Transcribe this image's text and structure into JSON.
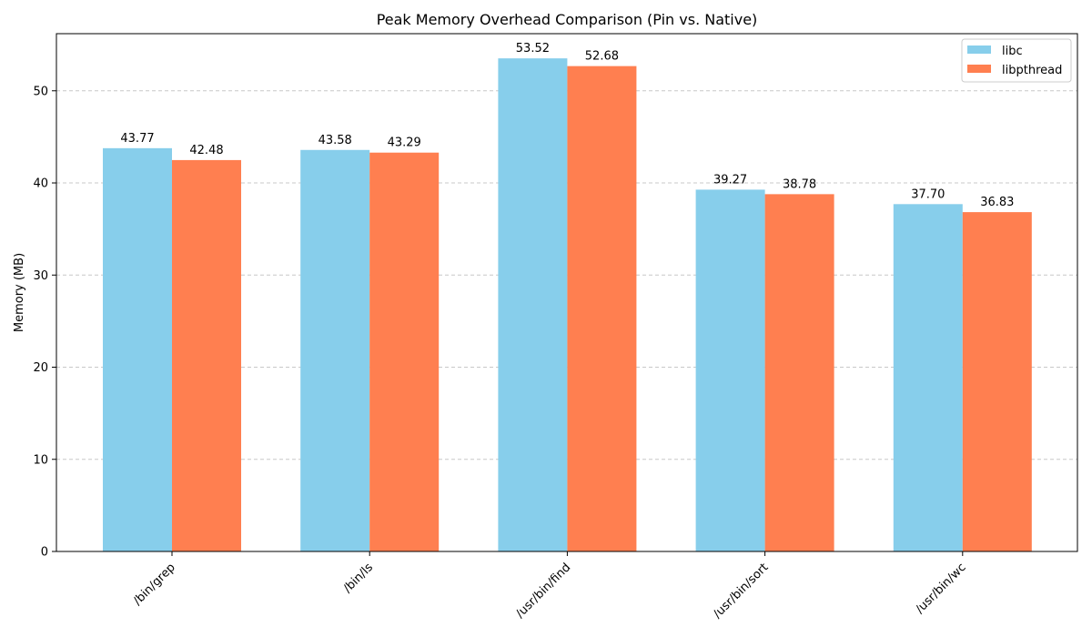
{
  "chart_data": {
    "type": "bar",
    "title": "Peak Memory Overhead Comparison (Pin vs. Native)",
    "xlabel": "",
    "ylabel": "Memory (MB)",
    "ylim": [
      0,
      56.2
    ],
    "yticks": [
      0,
      10,
      20,
      30,
      40,
      50
    ],
    "ytick_labels": [
      "0",
      "10",
      "20",
      "30",
      "40",
      "50"
    ],
    "grid": "y-dashed",
    "legend_position": "top-right",
    "categories": [
      "/bin/grep",
      "/bin/ls",
      "/usr/bin/find",
      "/usr/bin/sort",
      "/usr/bin/wc"
    ],
    "series": [
      {
        "name": "libc",
        "color": "#87CEEB",
        "values": [
          43.77,
          43.58,
          53.52,
          39.27,
          37.7
        ],
        "value_labels": [
          "43.77",
          "43.58",
          "53.52",
          "39.27",
          "37.70"
        ]
      },
      {
        "name": "libpthread",
        "color": "#FF7F50",
        "values": [
          42.48,
          43.29,
          52.68,
          38.78,
          36.83
        ],
        "value_labels": [
          "42.48",
          "43.29",
          "52.68",
          "38.78",
          "36.83"
        ]
      }
    ]
  }
}
